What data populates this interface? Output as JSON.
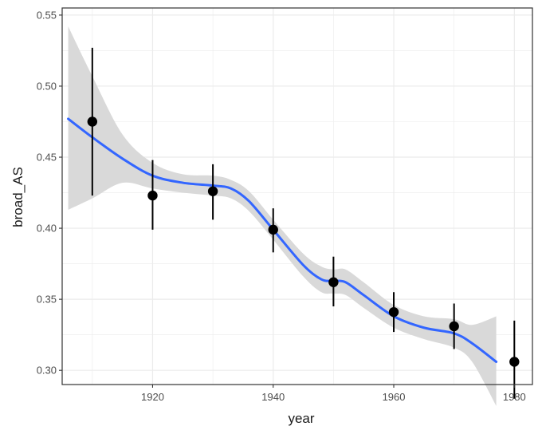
{
  "chart_data": {
    "type": "scatter",
    "xlabel": "year",
    "ylabel": "broad_AS",
    "xlim": [
      1905,
      1983
    ],
    "ylim": [
      0.29,
      0.555
    ],
    "x_ticks": [
      1920,
      1940,
      1960,
      1980
    ],
    "x_tick_labels": [
      "1920",
      "1940",
      "1960",
      "1980"
    ],
    "y_ticks": [
      0.3,
      0.35,
      0.4,
      0.45,
      0.5,
      0.55
    ],
    "y_tick_labels": [
      "0.30",
      "0.35",
      "0.40",
      "0.45",
      "0.50",
      "0.55"
    ],
    "grid": true,
    "legend": "none",
    "colors": {
      "points": "#000000",
      "smooth_line": "#3366ff",
      "ribbon": "#d9d9d9",
      "grid": "#ebebeb",
      "panel_border": "#333333"
    },
    "points": [
      {
        "x": 1910,
        "y": 0.475,
        "ymin": 0.423,
        "ymax": 0.527
      },
      {
        "x": 1920,
        "y": 0.423,
        "ymin": 0.399,
        "ymax": 0.448
      },
      {
        "x": 1930,
        "y": 0.426,
        "ymin": 0.406,
        "ymax": 0.445
      },
      {
        "x": 1940,
        "y": 0.399,
        "ymin": 0.383,
        "ymax": 0.414
      },
      {
        "x": 1950,
        "y": 0.362,
        "ymin": 0.345,
        "ymax": 0.38
      },
      {
        "x": 1960,
        "y": 0.341,
        "ymin": 0.327,
        "ymax": 0.355
      },
      {
        "x": 1970,
        "y": 0.331,
        "ymin": 0.315,
        "ymax": 0.347
      },
      {
        "x": 1980,
        "y": 0.306,
        "ymin": 0.28,
        "ymax": 0.335
      }
    ],
    "smooth": {
      "x": [
        1906,
        1910,
        1915,
        1920,
        1925,
        1930,
        1933,
        1936,
        1940,
        1945,
        1948,
        1950,
        1952,
        1955,
        1960,
        1965,
        1970,
        1973,
        1977
      ],
      "y": [
        0.477,
        0.464,
        0.449,
        0.437,
        0.432,
        0.43,
        0.428,
        0.419,
        0.399,
        0.374,
        0.364,
        0.363,
        0.362,
        0.353,
        0.338,
        0.33,
        0.326,
        0.319,
        0.306
      ],
      "upper": [
        0.542,
        0.507,
        0.466,
        0.446,
        0.438,
        0.437,
        0.434,
        0.426,
        0.406,
        0.382,
        0.373,
        0.371,
        0.371,
        0.362,
        0.346,
        0.338,
        0.336,
        0.332,
        0.338
      ],
      "lower": [
        0.413,
        0.421,
        0.432,
        0.428,
        0.425,
        0.423,
        0.421,
        0.412,
        0.392,
        0.366,
        0.355,
        0.354,
        0.353,
        0.344,
        0.33,
        0.322,
        0.316,
        0.306,
        0.275
      ]
    }
  }
}
